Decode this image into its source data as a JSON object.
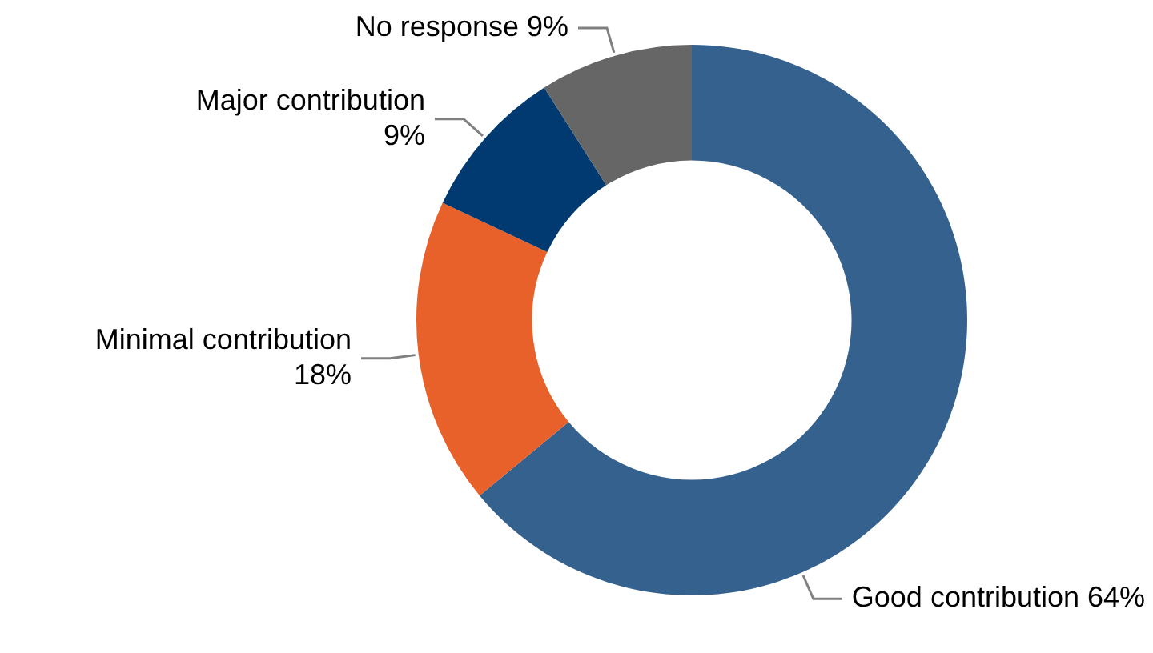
{
  "chart_data": {
    "type": "donut",
    "categories": [
      "Good contribution",
      "Minimal contribution",
      "Major contribution",
      "No response"
    ],
    "values": [
      64,
      18,
      9,
      9
    ],
    "colors": [
      "#34618e",
      "#e8602a",
      "#003a70",
      "#666666"
    ],
    "value_labels": [
      "64%",
      "18%",
      "9%",
      "9%"
    ],
    "legend": false
  }
}
